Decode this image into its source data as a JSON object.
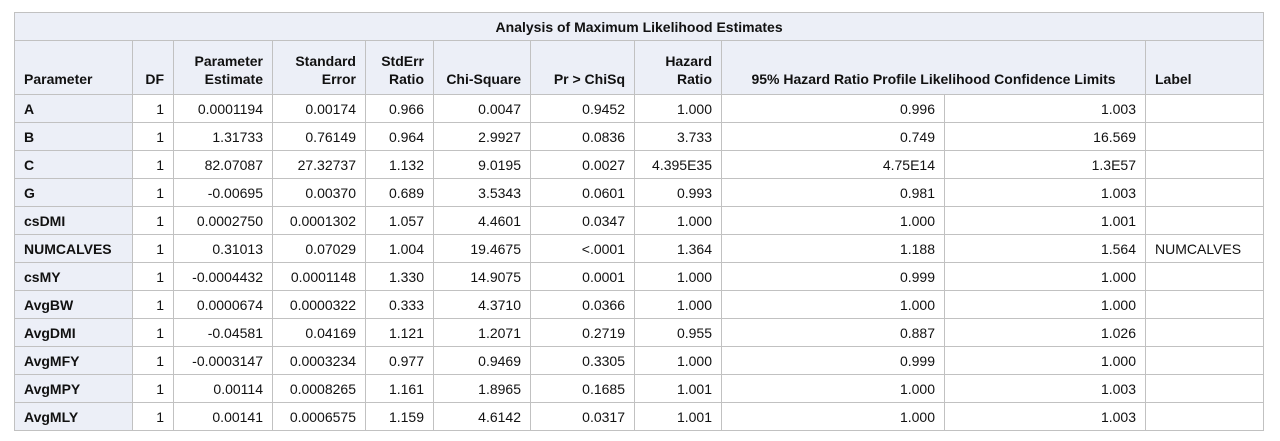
{
  "table": {
    "title": "Analysis of Maximum Likelihood Estimates",
    "headers": {
      "parameter": "Parameter",
      "df": "DF",
      "estimate": [
        "Parameter",
        "Estimate"
      ],
      "std_error": [
        "Standard",
        "Error"
      ],
      "stderr_ratio": [
        "StdErr",
        "Ratio"
      ],
      "chi_square": "Chi-Square",
      "p_value": "Pr > ChiSq",
      "hazard_ratio": [
        "Hazard",
        "Ratio"
      ],
      "ci": "95% Hazard Ratio Profile Likelihood Confidence Limits",
      "label": "Label"
    },
    "rows": [
      {
        "parameter": "A",
        "df": "1",
        "estimate": "0.0001194",
        "std_error": "0.00174",
        "stderr_ratio": "0.966",
        "chi_square": "0.0047",
        "p_value": "0.9452",
        "hazard_ratio": "1.000",
        "ci_lower": "0.996",
        "ci_upper": "1.003",
        "label": ""
      },
      {
        "parameter": "B",
        "df": "1",
        "estimate": "1.31733",
        "std_error": "0.76149",
        "stderr_ratio": "0.964",
        "chi_square": "2.9927",
        "p_value": "0.0836",
        "hazard_ratio": "3.733",
        "ci_lower": "0.749",
        "ci_upper": "16.569",
        "label": ""
      },
      {
        "parameter": "C",
        "df": "1",
        "estimate": "82.07087",
        "std_error": "27.32737",
        "stderr_ratio": "1.132",
        "chi_square": "9.0195",
        "p_value": "0.0027",
        "hazard_ratio": "4.395E35",
        "ci_lower": "4.75E14",
        "ci_upper": "1.3E57",
        "label": ""
      },
      {
        "parameter": "G",
        "df": "1",
        "estimate": "-0.00695",
        "std_error": "0.00370",
        "stderr_ratio": "0.689",
        "chi_square": "3.5343",
        "p_value": "0.0601",
        "hazard_ratio": "0.993",
        "ci_lower": "0.981",
        "ci_upper": "1.003",
        "label": ""
      },
      {
        "parameter": "csDMI",
        "df": "1",
        "estimate": "0.0002750",
        "std_error": "0.0001302",
        "stderr_ratio": "1.057",
        "chi_square": "4.4601",
        "p_value": "0.0347",
        "hazard_ratio": "1.000",
        "ci_lower": "1.000",
        "ci_upper": "1.001",
        "label": ""
      },
      {
        "parameter": "NUMCALVES",
        "df": "1",
        "estimate": "0.31013",
        "std_error": "0.07029",
        "stderr_ratio": "1.004",
        "chi_square": "19.4675",
        "p_value": "<.0001",
        "hazard_ratio": "1.364",
        "ci_lower": "1.188",
        "ci_upper": "1.564",
        "label": "NUMCALVES"
      },
      {
        "parameter": "csMY",
        "df": "1",
        "estimate": "-0.0004432",
        "std_error": "0.0001148",
        "stderr_ratio": "1.330",
        "chi_square": "14.9075",
        "p_value": "0.0001",
        "hazard_ratio": "1.000",
        "ci_lower": "0.999",
        "ci_upper": "1.000",
        "label": ""
      },
      {
        "parameter": "AvgBW",
        "df": "1",
        "estimate": "0.0000674",
        "std_error": "0.0000322",
        "stderr_ratio": "0.333",
        "chi_square": "4.3710",
        "p_value": "0.0366",
        "hazard_ratio": "1.000",
        "ci_lower": "1.000",
        "ci_upper": "1.000",
        "label": ""
      },
      {
        "parameter": "AvgDMI",
        "df": "1",
        "estimate": "-0.04581",
        "std_error": "0.04169",
        "stderr_ratio": "1.121",
        "chi_square": "1.2071",
        "p_value": "0.2719",
        "hazard_ratio": "0.955",
        "ci_lower": "0.887",
        "ci_upper": "1.026",
        "label": ""
      },
      {
        "parameter": "AvgMFY",
        "df": "1",
        "estimate": "-0.0003147",
        "std_error": "0.0003234",
        "stderr_ratio": "0.977",
        "chi_square": "0.9469",
        "p_value": "0.3305",
        "hazard_ratio": "1.000",
        "ci_lower": "0.999",
        "ci_upper": "1.000",
        "label": ""
      },
      {
        "parameter": "AvgMPY",
        "df": "1",
        "estimate": "0.00114",
        "std_error": "0.0008265",
        "stderr_ratio": "1.161",
        "chi_square": "1.8965",
        "p_value": "0.1685",
        "hazard_ratio": "1.001",
        "ci_lower": "1.000",
        "ci_upper": "1.003",
        "label": ""
      },
      {
        "parameter": "AvgMLY",
        "df": "1",
        "estimate": "0.00141",
        "std_error": "0.0006575",
        "stderr_ratio": "1.159",
        "chi_square": "4.6142",
        "p_value": "0.0317",
        "hazard_ratio": "1.001",
        "ci_lower": "1.000",
        "ci_upper": "1.003",
        "label": ""
      }
    ]
  }
}
